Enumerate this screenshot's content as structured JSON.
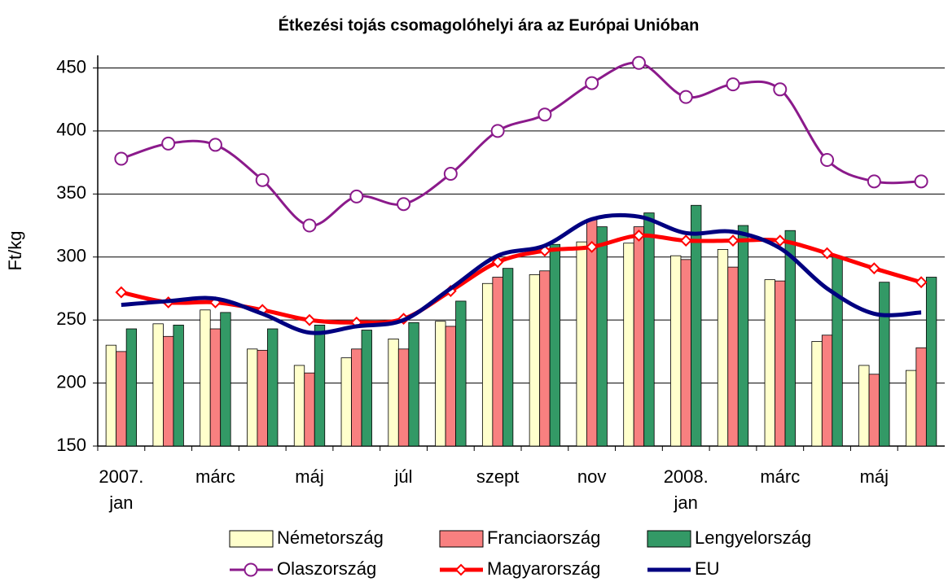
{
  "chart_data": {
    "type": "bar_line",
    "title": "Étkezési tojás csomagolóhelyi ára az Európai Unióban",
    "ylabel": "Ft/kg",
    "categories": [
      "2007.\njan",
      null,
      "márc",
      null,
      "máj",
      null,
      "júl",
      null,
      "szept",
      null,
      "nov",
      null,
      "2008.\njan",
      null,
      "márc",
      null,
      "máj",
      null
    ],
    "ylim": [
      150,
      460
    ],
    "yticks": [
      150,
      200,
      250,
      300,
      350,
      400,
      450
    ],
    "grid": true,
    "series": [
      {
        "name": "Németország",
        "kind": "bar",
        "color": "#ffffcc",
        "values": [
          230,
          247,
          258,
          227,
          214,
          220,
          235,
          249,
          279,
          286,
          312,
          311,
          301,
          306,
          282,
          233,
          214,
          210
        ]
      },
      {
        "name": "Franciaország",
        "kind": "bar",
        "color": "#f88080",
        "values": [
          225,
          237,
          243,
          226,
          208,
          227,
          227,
          245,
          284,
          289,
          330,
          324,
          298,
          292,
          281,
          238,
          207,
          228
        ]
      },
      {
        "name": "Lengyelország",
        "kind": "bar",
        "color": "#339966",
        "values": [
          243,
          246,
          256,
          243,
          246,
          242,
          248,
          265,
          291,
          310,
          324,
          335,
          341,
          325,
          321,
          300,
          280,
          284
        ]
      },
      {
        "name": "Olaszország",
        "kind": "line",
        "marker": "circle",
        "color": "#8b1a8b",
        "values": [
          378,
          390,
          389,
          361,
          325,
          348,
          342,
          366,
          400,
          413,
          438,
          454,
          427,
          437,
          433,
          377,
          360,
          360
        ]
      },
      {
        "name": "Magyarország",
        "kind": "line",
        "marker": "diamond",
        "color": "#ff0000",
        "values": [
          272,
          264,
          264,
          258,
          250,
          248,
          251,
          273,
          296,
          305,
          308,
          317,
          313,
          313,
          313,
          303,
          291,
          280
        ]
      },
      {
        "name": "EU",
        "kind": "line",
        "color": "#000080",
        "values": [
          262,
          265,
          267,
          255,
          240,
          245,
          250,
          275,
          301,
          309,
          330,
          332,
          319,
          320,
          307,
          275,
          255,
          256
        ]
      }
    ]
  }
}
